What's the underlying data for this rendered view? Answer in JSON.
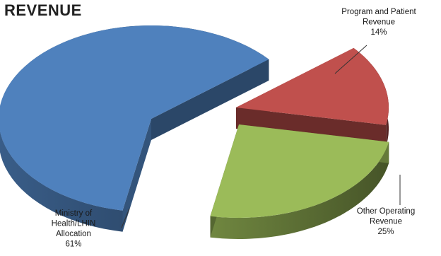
{
  "chart_data": {
    "type": "pie",
    "title": "REVENUE",
    "slices": [
      {
        "label_lines": [
          "Ministry of",
          "Health/LHIN",
          "Allocation",
          "61%"
        ],
        "value": 61,
        "color": "#4F81BD"
      },
      {
        "label_lines": [
          "Program and Patient",
          "Revenue",
          "14%"
        ],
        "value": 14,
        "color": "#C0504D"
      },
      {
        "label_lines": [
          "Other Operating",
          "Revenue",
          "25%"
        ],
        "value": 25,
        "color": "#9BBB59"
      }
    ]
  }
}
